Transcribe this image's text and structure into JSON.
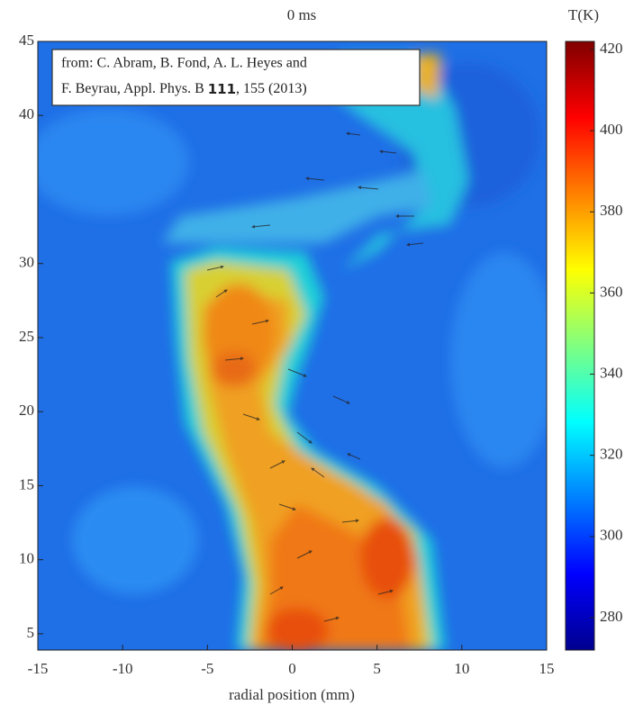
{
  "chart_data": {
    "type": "heatmap",
    "title": "0 ms",
    "x_label": "radial position (mm)",
    "xlim": [
      -15,
      15
    ],
    "xticks": [
      -15,
      -10,
      -5,
      0,
      5,
      10,
      15
    ],
    "ylim": [
      3.9,
      45
    ],
    "yticks": [
      45,
      40,
      30,
      25,
      20,
      15,
      10,
      5
    ],
    "colorbar": {
      "label": "T(K)",
      "lim": [
        272,
        422
      ],
      "ticks": [
        420,
        400,
        380,
        360,
        340,
        320,
        300,
        280
      ],
      "colormap": "jet"
    },
    "annotation": [
      "from: C. Abram, B. Fond, A. L. Heyes and",
      "F. Beyrau, Appl. Phys. B ",
      "111",
      ", 155 (2013)"
    ]
  }
}
